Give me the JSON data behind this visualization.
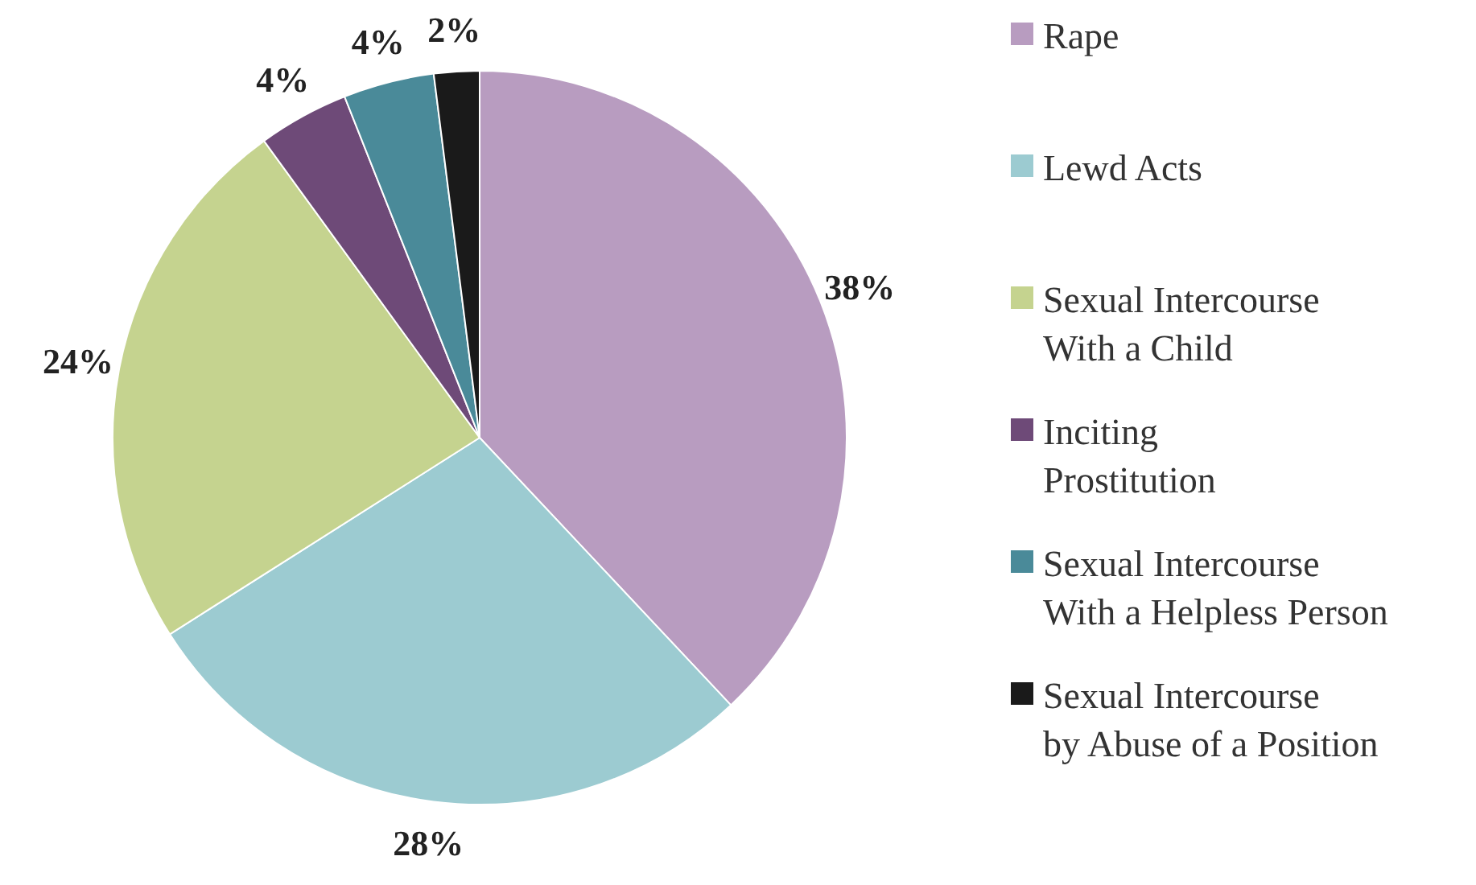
{
  "chart_data": {
    "type": "pie",
    "categories": [
      "Rape",
      "Lewd Acts",
      "Sexual Intercourse With a Child",
      "Inciting Prostitution",
      "Sexual Intercourse With a Helpless Person",
      "Sexual Intercourse by Abuse of a Position"
    ],
    "values": [
      38,
      28,
      24,
      4,
      4,
      2
    ],
    "value_labels": [
      "38%",
      "28%",
      "24%",
      "4%",
      "4%",
      "2%"
    ],
    "colors": [
      "#b89cc0",
      "#9ccbd1",
      "#c5d38f",
      "#6e4a78",
      "#4a8a99",
      "#1a1a1a"
    ],
    "legend": "right"
  }
}
